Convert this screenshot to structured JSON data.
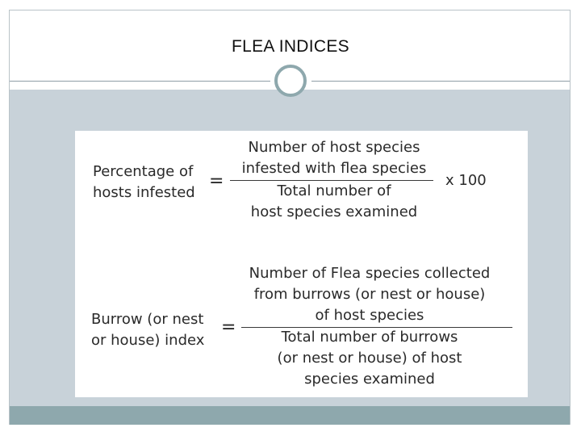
{
  "slide": {
    "title": "FLEA INDICES"
  },
  "formula1": {
    "lhs": [
      "Percentage  of",
      "hosts infested"
    ],
    "equals": "=",
    "numerator": [
      "Number of host species",
      "infested with flea species"
    ],
    "denominator": [
      "Total number of",
      "host species examined"
    ],
    "multiplier": "x 100"
  },
  "formula2": {
    "lhs": [
      "Burrow (or nest",
      "or house) index"
    ],
    "equals": "=",
    "numerator": [
      "Number of Flea species collected",
      "from burrows (or nest or house)",
      "of host species"
    ],
    "denominator": [
      "Total number of burrows",
      "(or nest or house) of host",
      "species examined"
    ]
  },
  "colors": {
    "content_bg": "#c8d2d9",
    "footer_bar": "#8ea8ad",
    "divider": "#8f9ea6"
  }
}
